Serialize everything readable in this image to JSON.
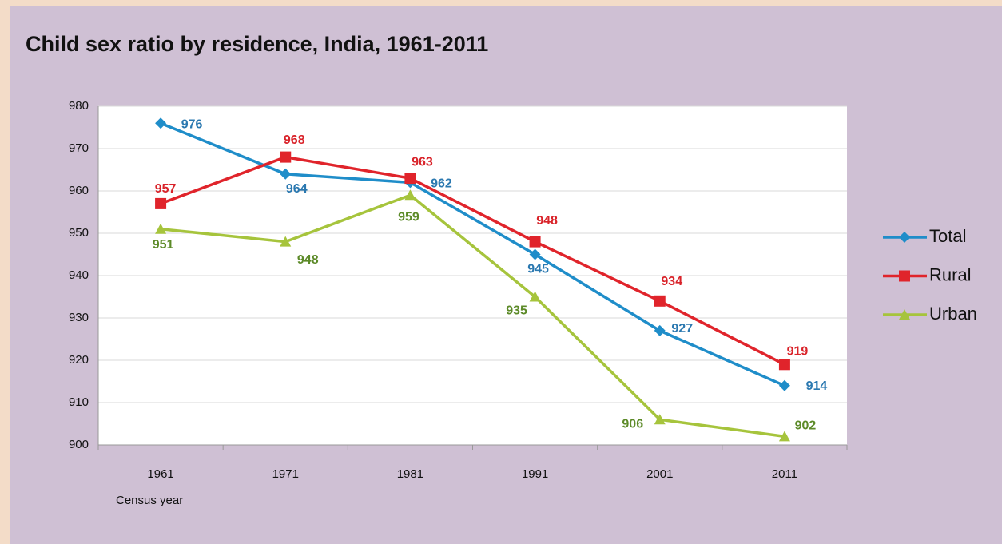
{
  "chart_data": {
    "type": "line",
    "title": "Child sex ratio by residence, India, 1961-2011",
    "x_label": "Census year",
    "categories": [
      "1961",
      "1971",
      "1981",
      "1991",
      "2001",
      "2011"
    ],
    "series": [
      {
        "name": "Total",
        "color": "#1f8dc9",
        "label_color": "#2a78b0",
        "marker": "diamond",
        "values": [
          976,
          964,
          962,
          945,
          927,
          914
        ]
      },
      {
        "name": "Rural",
        "color": "#e0242b",
        "label_color": "#d9232a",
        "marker": "square",
        "values": [
          957,
          968,
          963,
          948,
          934,
          919
        ]
      },
      {
        "name": "Urban",
        "color": "#a6c43c",
        "label_color": "#5c8a28",
        "marker": "triangle",
        "values": [
          951,
          948,
          959,
          935,
          906,
          902
        ]
      }
    ],
    "ylim": [
      900,
      980
    ],
    "yticks": [
      900,
      910,
      920,
      930,
      940,
      950,
      960,
      970,
      980
    ],
    "grid": true,
    "legend": "right"
  }
}
